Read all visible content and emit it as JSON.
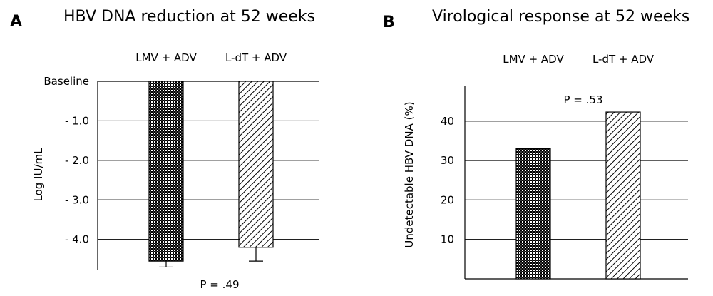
{
  "chart_data": [
    {
      "type": "bar",
      "panel_letter": "A",
      "title": "HBV DNA reduction at 52 weeks",
      "ylabel": "Log IU/mL",
      "xlabel": "",
      "categories": [
        "LMV + ADV",
        "L-dT + ADV"
      ],
      "values": [
        -4.55,
        -4.2
      ],
      "errors": [
        0.15,
        0.35
      ],
      "bar_patterns": [
        "checker",
        "diagonal"
      ],
      "yticks": [
        {
          "value": 0,
          "label": "Baseline"
        },
        {
          "value": -1,
          "label": "- 1.0"
        },
        {
          "value": -2,
          "label": "- 2.0"
        },
        {
          "value": -3,
          "label": "- 3.0"
        },
        {
          "value": -4,
          "label": "- 4.0"
        }
      ],
      "ylim": [
        -4.8,
        0
      ],
      "grid": true,
      "legend": "none",
      "annotation": "P = .49"
    },
    {
      "type": "bar",
      "panel_letter": "B",
      "title": "Virological response at 52 weeks",
      "ylabel": "Undetectable HBV DNA (%)",
      "xlabel": "",
      "categories": [
        "LMV + ADV",
        "L-dT + ADV"
      ],
      "values": [
        33,
        42.3
      ],
      "bar_patterns": [
        "checker",
        "diagonal"
      ],
      "yticks": [
        {
          "value": 10,
          "label": "10"
        },
        {
          "value": 20,
          "label": "20"
        },
        {
          "value": 30,
          "label": "30"
        },
        {
          "value": 40,
          "label": "40"
        }
      ],
      "ylim": [
        0,
        49
      ],
      "grid": true,
      "legend": "none",
      "annotation": "P = .53"
    }
  ]
}
